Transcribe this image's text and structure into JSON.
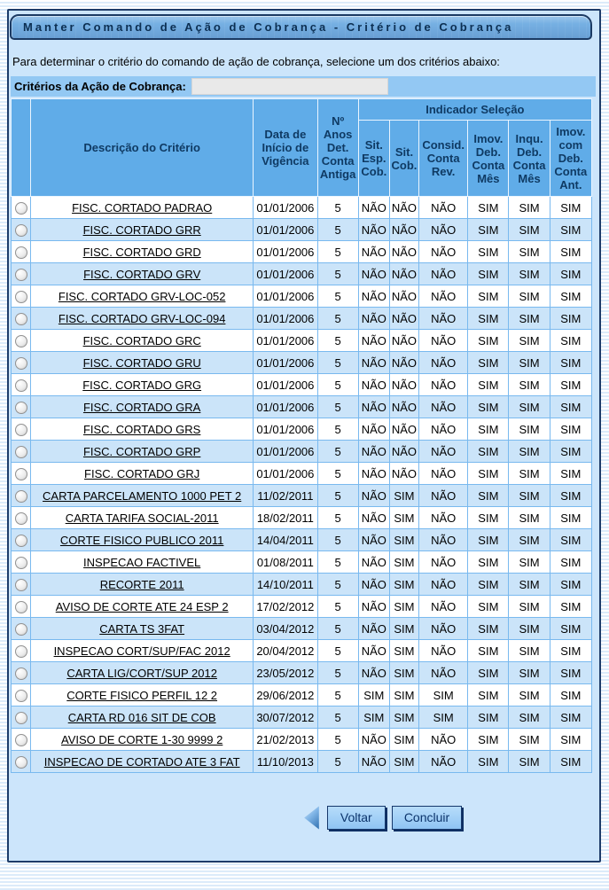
{
  "page": {
    "title": "Manter Comando de Ação de Cobrança - Critério de Cobrança",
    "instruction": "Para determinar o critério do comando de ação de cobrança, selecione um dos critérios abaixo:"
  },
  "filter": {
    "label": "Critérios da Ação de Cobrança:",
    "value": ""
  },
  "table": {
    "group_header": "Indicador Seleção",
    "col_desc": "Descrição do Critério",
    "col_date": "Data de Início de Vigência",
    "col_anos": "Nº Anos Det. Conta Antiga",
    "indicator_columns": [
      "Sit. Esp. Cob.",
      "Sit. Cob.",
      "Consid. Conta Rev.",
      "Imov. Deb. Conta Mês",
      "Inqu. Deb. Conta Mês",
      "Imov. com Deb. Conta Ant."
    ],
    "rows": [
      {
        "desc": "FISC. CORTADO PADRAO",
        "date": "01/01/2006",
        "anos": "5",
        "ind": [
          "NÃO",
          "NÃO",
          "NÃO",
          "SIM",
          "SIM",
          "SIM"
        ]
      },
      {
        "desc": "FISC. CORTADO GRR",
        "date": "01/01/2006",
        "anos": "5",
        "ind": [
          "NÃO",
          "NÃO",
          "NÃO",
          "SIM",
          "SIM",
          "SIM"
        ]
      },
      {
        "desc": "FISC. CORTADO GRD",
        "date": "01/01/2006",
        "anos": "5",
        "ind": [
          "NÃO",
          "NÃO",
          "NÃO",
          "SIM",
          "SIM",
          "SIM"
        ]
      },
      {
        "desc": "FISC. CORTADO GRV",
        "date": "01/01/2006",
        "anos": "5",
        "ind": [
          "NÃO",
          "NÃO",
          "NÃO",
          "SIM",
          "SIM",
          "SIM"
        ]
      },
      {
        "desc": "FISC. CORTADO GRV-LOC-052",
        "date": "01/01/2006",
        "anos": "5",
        "ind": [
          "NÃO",
          "NÃO",
          "NÃO",
          "SIM",
          "SIM",
          "SIM"
        ]
      },
      {
        "desc": "FISC. CORTADO GRV-LOC-094",
        "date": "01/01/2006",
        "anos": "5",
        "ind": [
          "NÃO",
          "NÃO",
          "NÃO",
          "SIM",
          "SIM",
          "SIM"
        ]
      },
      {
        "desc": "FISC. CORTADO GRC",
        "date": "01/01/2006",
        "anos": "5",
        "ind": [
          "NÃO",
          "NÃO",
          "NÃO",
          "SIM",
          "SIM",
          "SIM"
        ]
      },
      {
        "desc": "FISC. CORTADO GRU",
        "date": "01/01/2006",
        "anos": "5",
        "ind": [
          "NÃO",
          "NÃO",
          "NÃO",
          "SIM",
          "SIM",
          "SIM"
        ]
      },
      {
        "desc": "FISC. CORTADO GRG",
        "date": "01/01/2006",
        "anos": "5",
        "ind": [
          "NÃO",
          "NÃO",
          "NÃO",
          "SIM",
          "SIM",
          "SIM"
        ]
      },
      {
        "desc": "FISC. CORTADO GRA",
        "date": "01/01/2006",
        "anos": "5",
        "ind": [
          "NÃO",
          "NÃO",
          "NÃO",
          "SIM",
          "SIM",
          "SIM"
        ]
      },
      {
        "desc": "FISC. CORTADO GRS",
        "date": "01/01/2006",
        "anos": "5",
        "ind": [
          "NÃO",
          "NÃO",
          "NÃO",
          "SIM",
          "SIM",
          "SIM"
        ]
      },
      {
        "desc": "FISC. CORTADO GRP",
        "date": "01/01/2006",
        "anos": "5",
        "ind": [
          "NÃO",
          "NÃO",
          "NÃO",
          "SIM",
          "SIM",
          "SIM"
        ]
      },
      {
        "desc": "FISC. CORTADO GRJ",
        "date": "01/01/2006",
        "anos": "5",
        "ind": [
          "NÃO",
          "NÃO",
          "NÃO",
          "SIM",
          "SIM",
          "SIM"
        ]
      },
      {
        "desc": "CARTA PARCELAMENTO 1000 PET 2",
        "date": "11/02/2011",
        "anos": "5",
        "ind": [
          "NÃO",
          "SIM",
          "NÃO",
          "SIM",
          "SIM",
          "SIM"
        ]
      },
      {
        "desc": "CARTA TARIFA SOCIAL-2011",
        "date": "18/02/2011",
        "anos": "5",
        "ind": [
          "NÃO",
          "SIM",
          "NÃO",
          "SIM",
          "SIM",
          "SIM"
        ]
      },
      {
        "desc": "CORTE FISICO PUBLICO 2011",
        "date": "14/04/2011",
        "anos": "5",
        "ind": [
          "NÃO",
          "SIM",
          "NÃO",
          "SIM",
          "SIM",
          "SIM"
        ]
      },
      {
        "desc": "INSPECAO FACTIVEL",
        "date": "01/08/2011",
        "anos": "5",
        "ind": [
          "NÃO",
          "SIM",
          "NÃO",
          "SIM",
          "SIM",
          "SIM"
        ]
      },
      {
        "desc": "RECORTE 2011",
        "date": "14/10/2011",
        "anos": "5",
        "ind": [
          "NÃO",
          "SIM",
          "NÃO",
          "SIM",
          "SIM",
          "SIM"
        ]
      },
      {
        "desc": "AVISO DE CORTE ATE 24 ESP 2",
        "date": "17/02/2012",
        "anos": "5",
        "ind": [
          "NÃO",
          "SIM",
          "NÃO",
          "SIM",
          "SIM",
          "SIM"
        ]
      },
      {
        "desc": "CARTA TS 3FAT",
        "date": "03/04/2012",
        "anos": "5",
        "ind": [
          "NÃO",
          "SIM",
          "NÃO",
          "SIM",
          "SIM",
          "SIM"
        ]
      },
      {
        "desc": "INSPECAO CORT/SUP/FAC 2012",
        "date": "20/04/2012",
        "anos": "5",
        "ind": [
          "NÃO",
          "SIM",
          "NÃO",
          "SIM",
          "SIM",
          "SIM"
        ]
      },
      {
        "desc": "CARTA LIG/CORT/SUP 2012",
        "date": "23/05/2012",
        "anos": "5",
        "ind": [
          "NÃO",
          "SIM",
          "NÃO",
          "SIM",
          "SIM",
          "SIM"
        ]
      },
      {
        "desc": "CORTE FISICO PERFIL 12 2",
        "date": "29/06/2012",
        "anos": "5",
        "ind": [
          "SIM",
          "SIM",
          "SIM",
          "SIM",
          "SIM",
          "SIM"
        ]
      },
      {
        "desc": "CARTA RD 016 SIT DE COB",
        "date": "30/07/2012",
        "anos": "5",
        "ind": [
          "SIM",
          "SIM",
          "SIM",
          "SIM",
          "SIM",
          "SIM"
        ]
      },
      {
        "desc": "AVISO DE CORTE 1-30 9999 2",
        "date": "21/02/2013",
        "anos": "5",
        "ind": [
          "NÃO",
          "SIM",
          "NÃO",
          "SIM",
          "SIM",
          "SIM"
        ]
      },
      {
        "desc": "INSPECAO DE CORTADO ATE 3 FAT",
        "date": "11/10/2013",
        "anos": "5",
        "ind": [
          "NÃO",
          "SIM",
          "NÃO",
          "SIM",
          "SIM",
          "SIM"
        ]
      }
    ]
  },
  "buttons": {
    "back": "Voltar",
    "finish": "Concluir"
  },
  "colors": {
    "panel_bg": "#cce5fb",
    "panel_border": "#1e3c69",
    "title_bar_bg": "#76b0e3",
    "title_text": "#0c2f52",
    "table_header_bg": "#60ace8",
    "table_header_text": "#0f3a63",
    "row_alt_bg": "#cbe4f9",
    "grid_line": "#79b9ef",
    "filter_band_bg": "#93c8f3",
    "button_bg": "#9ecff7",
    "button_text": "#0c346b"
  }
}
